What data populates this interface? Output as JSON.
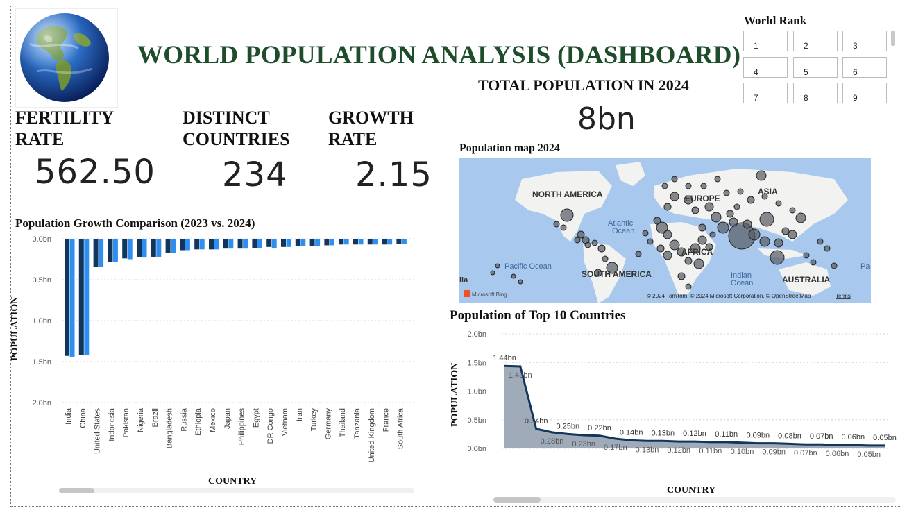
{
  "title": "WORLD POPULATION ANALYSIS (DASHBOARD)",
  "kpis": [
    {
      "label_line1": "FERTILITY",
      "label_line2": "RATE",
      "value": "562.50"
    },
    {
      "label_line1": "DISTINCT",
      "label_line2": "COUNTRIES",
      "value": "234"
    },
    {
      "label_line1": "GROWTH",
      "label_line2": "RATE",
      "value": "2.15"
    }
  ],
  "total": {
    "label": "TOTAL POPULATION IN 2024",
    "value": "8bn"
  },
  "world_rank": {
    "title": "World Rank",
    "items": [
      "1",
      "2",
      "3",
      "4",
      "5",
      "6",
      "7",
      "8",
      "9"
    ]
  },
  "map": {
    "title": "Population map 2024",
    "labels": {
      "north_america": "NORTH AMERICA",
      "south_america": "SOUTH AMERICA",
      "europe": "EUROPE",
      "asia": "ASIA",
      "africa": "AFRICA",
      "australia": "AUSTRALIA",
      "atlantic": "Atlantic",
      "atlantic2": "Ocean",
      "pacific": "Pacific Ocean",
      "indian": "Indian",
      "indian2": "Ocean",
      "pa": "Pa",
      "lia": "lia"
    },
    "attribution": "© 2024 TomTom, © 2024 Microsoft Corporation, © OpenStreetMap",
    "terms": "Terms",
    "bing": "Microsoft Bing"
  },
  "chart_data": [
    {
      "type": "bar",
      "title": "Population Growth Comparison (2023 vs. 2024)",
      "xlabel": "COUNTRY",
      "ylabel": "POPULATION",
      "y_ticks": [
        "0.0bn",
        "0.5bn",
        "1.0bn",
        "1.5bn",
        "2.0bn"
      ],
      "ylim": [
        0,
        2.0
      ],
      "y_inverted": true,
      "colors": {
        "2023": "#12355b",
        "2024": "#2f8ff0"
      },
      "categories": [
        "India",
        "China",
        "United States",
        "Indonesia",
        "Pakistan",
        "Nigeria",
        "Brazil",
        "Bangladesh",
        "Russia",
        "Ethiopia",
        "Mexico",
        "Japan",
        "Philippines",
        "Egypt",
        "DR Congo",
        "Vietnam",
        "Iran",
        "Turkey",
        "Germany",
        "Thailand",
        "Tanzania",
        "United Kingdom",
        "France",
        "South Africa"
      ],
      "series": [
        {
          "values": [
            1.43,
            1.42,
            0.34,
            0.28,
            0.24,
            0.22,
            0.22,
            0.17,
            0.14,
            0.13,
            0.13,
            0.12,
            0.12,
            0.11,
            0.1,
            0.1,
            0.09,
            0.09,
            0.08,
            0.07,
            0.07,
            0.07,
            0.07,
            0.06
          ]
        },
        {
          "values": [
            1.44,
            1.42,
            0.34,
            0.28,
            0.25,
            0.23,
            0.22,
            0.17,
            0.14,
            0.13,
            0.13,
            0.12,
            0.12,
            0.11,
            0.11,
            0.1,
            0.09,
            0.09,
            0.08,
            0.07,
            0.07,
            0.07,
            0.07,
            0.06
          ]
        }
      ]
    },
    {
      "type": "area",
      "title": "Population of Top 10 Countries",
      "xlabel": "COUNTRY",
      "ylabel": "POPULATION",
      "y_ticks": [
        "0.0bn",
        "0.5bn",
        "1.0bn",
        "1.5bn",
        "2.0bn"
      ],
      "ylim": [
        0,
        2.0
      ],
      "colors": {
        "line": "#12355b",
        "fill": "#8e9cac"
      },
      "values": [
        1.44,
        1.43,
        0.34,
        0.28,
        0.25,
        0.23,
        0.22,
        0.17,
        0.14,
        0.13,
        0.13,
        0.12,
        0.12,
        0.11,
        0.11,
        0.1,
        0.09,
        0.09,
        0.08,
        0.07,
        0.07,
        0.06,
        0.06,
        0.05,
        0.05
      ],
      "labels": [
        "1.44bn",
        "1.43bn",
        "0.34bn",
        "0.28bn",
        "0.25bn",
        "0.23bn",
        "0.22bn",
        "0.17bn",
        "0.14bn",
        "0.13bn",
        "0.13bn",
        "0.12bn",
        "0.12bn",
        "0.11bn",
        "0.11bn",
        "0.10bn",
        "0.09bn",
        "0.09bn",
        "0.08bn",
        "0.07bn",
        "0.07bn",
        "0.06bn",
        "0.06bn",
        "0.05bn",
        "0.05bn"
      ]
    }
  ]
}
